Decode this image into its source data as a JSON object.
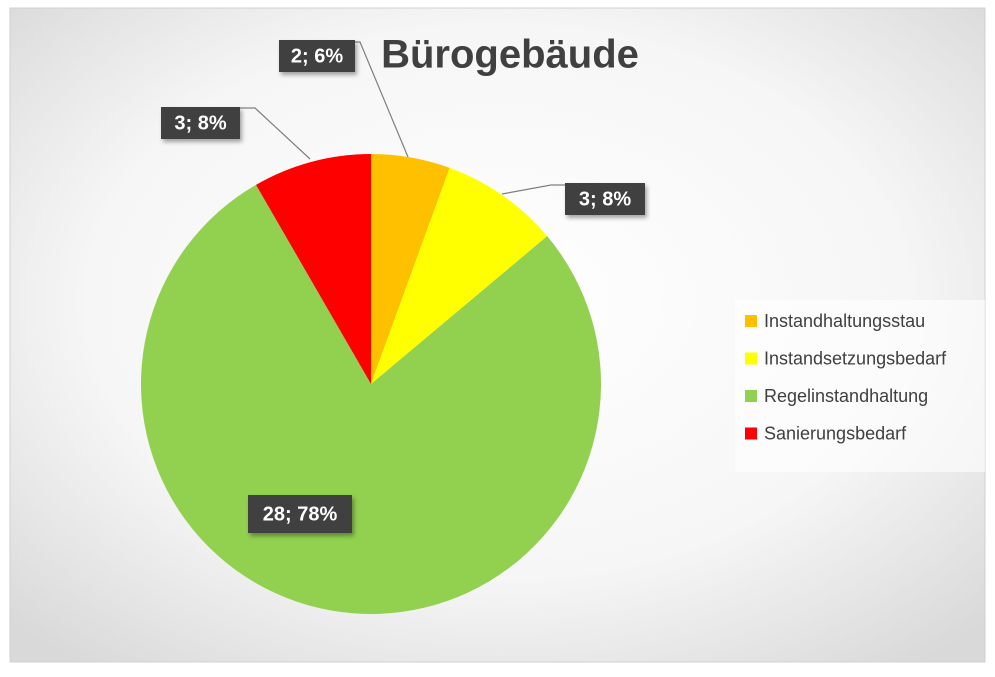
{
  "chart_data": {
    "type": "pie",
    "title": "Bürogebäude",
    "categories": [
      "Instandhaltungsstau",
      "Instandsetzungsbedarf",
      "Regelinstandhaltung",
      "Sanierungsbedarf"
    ],
    "values": [
      2,
      3,
      28,
      3
    ],
    "value_labels": [
      "2; 6%",
      "3; 8%",
      "28; 78%",
      "3; 8%"
    ],
    "colors": [
      "#ffc000",
      "#ffff00",
      "#92d050",
      "#ff0000"
    ],
    "legend": "right"
  }
}
